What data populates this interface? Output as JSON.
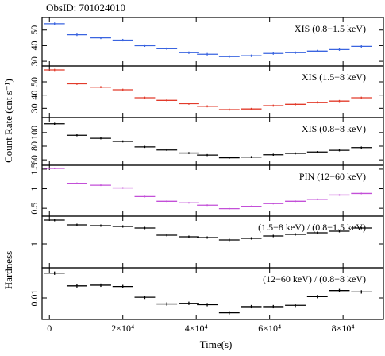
{
  "header": {
    "obsid": "ObsID: 701024010"
  },
  "chart_data": {
    "type": "scatter",
    "x_axis": {
      "label": "Time(s)",
      "range": [
        -2000,
        91000
      ],
      "ticks": [
        {
          "value": 0,
          "label": "0"
        },
        {
          "value": 20000,
          "label": "2×10⁴"
        },
        {
          "value": 40000,
          "label": "4×10⁴"
        },
        {
          "value": 60000,
          "label": "6×10⁴"
        },
        {
          "value": 80000,
          "label": "8×10⁴"
        }
      ]
    },
    "shared_ylabels": {
      "count_rate": "Count Rate (cnt s⁻¹)",
      "hardness": "Hardness"
    },
    "bin_half_width": 2800,
    "panels": [
      {
        "label": "XIS (0.8−1.5 keV)",
        "color": "#3a64e0",
        "ylim": [
          27,
          58
        ],
        "log": false,
        "ticks": [
          {
            "value": 30,
            "label": "30"
          },
          {
            "value": 40,
            "label": "40"
          },
          {
            "value": 50,
            "label": "50"
          }
        ],
        "points": [
          {
            "x": 1400,
            "y": 54.0,
            "yerr": 0.8
          },
          {
            "x": 7500,
            "y": 47.0,
            "yerr": 0.8
          },
          {
            "x": 14000,
            "y": 45.0,
            "yerr": 0.8
          },
          {
            "x": 20000,
            "y": 43.5,
            "yerr": 0.8
          },
          {
            "x": 26000,
            "y": 40.0,
            "yerr": 0.8
          },
          {
            "x": 32000,
            "y": 38.0,
            "yerr": 0.8
          },
          {
            "x": 38000,
            "y": 35.5,
            "yerr": 0.8
          },
          {
            "x": 43000,
            "y": 34.5,
            "yerr": 0.8
          },
          {
            "x": 49000,
            "y": 33.0,
            "yerr": 0.8
          },
          {
            "x": 55000,
            "y": 33.5,
            "yerr": 0.8
          },
          {
            "x": 61000,
            "y": 35.0,
            "yerr": 0.8
          },
          {
            "x": 67000,
            "y": 35.5,
            "yerr": 0.8
          },
          {
            "x": 73000,
            "y": 36.5,
            "yerr": 0.8
          },
          {
            "x": 79000,
            "y": 37.5,
            "yerr": 0.8
          },
          {
            "x": 85000,
            "y": 39.5,
            "yerr": 0.8
          }
        ]
      },
      {
        "label": "XIS (1.5−8 keV)",
        "color": "#e23b2b",
        "ylim": [
          23,
          62
        ],
        "log": false,
        "ticks": [
          {
            "value": 30,
            "label": "30"
          },
          {
            "value": 40,
            "label": "40"
          },
          {
            "value": 50,
            "label": "50"
          }
        ],
        "points": [
          {
            "x": 1400,
            "y": 59.0,
            "yerr": 0.8
          },
          {
            "x": 7500,
            "y": 48.5,
            "yerr": 0.8
          },
          {
            "x": 14000,
            "y": 46.0,
            "yerr": 0.8
          },
          {
            "x": 20000,
            "y": 44.0,
            "yerr": 0.8
          },
          {
            "x": 26000,
            "y": 38.0,
            "yerr": 0.8
          },
          {
            "x": 32000,
            "y": 36.0,
            "yerr": 0.8
          },
          {
            "x": 38000,
            "y": 33.5,
            "yerr": 0.8
          },
          {
            "x": 43000,
            "y": 31.5,
            "yerr": 0.8
          },
          {
            "x": 49000,
            "y": 29.0,
            "yerr": 0.8
          },
          {
            "x": 55000,
            "y": 29.5,
            "yerr": 0.8
          },
          {
            "x": 61000,
            "y": 32.0,
            "yerr": 0.8
          },
          {
            "x": 67000,
            "y": 33.0,
            "yerr": 0.8
          },
          {
            "x": 73000,
            "y": 34.5,
            "yerr": 0.8
          },
          {
            "x": 79000,
            "y": 35.5,
            "yerr": 0.8
          },
          {
            "x": 85000,
            "y": 38.0,
            "yerr": 0.8
          }
        ]
      },
      {
        "label": "XIS (0.8−8 keV)",
        "color": "#000000",
        "ylim": [
          52,
          122
        ],
        "log": false,
        "ticks": [
          {
            "value": 60,
            "label": "60"
          },
          {
            "value": 80,
            "label": "80"
          },
          {
            "value": 100,
            "label": "100"
          }
        ],
        "points": [
          {
            "x": 1400,
            "y": 113.0,
            "yerr": 1.5
          },
          {
            "x": 7500,
            "y": 96.0,
            "yerr": 1.5
          },
          {
            "x": 14000,
            "y": 91.5,
            "yerr": 1.5
          },
          {
            "x": 20000,
            "y": 87.0,
            "yerr": 1.5
          },
          {
            "x": 26000,
            "y": 79.0,
            "yerr": 1.5
          },
          {
            "x": 32000,
            "y": 74.5,
            "yerr": 1.5
          },
          {
            "x": 38000,
            "y": 70.0,
            "yerr": 1.5
          },
          {
            "x": 43000,
            "y": 67.0,
            "yerr": 1.5
          },
          {
            "x": 49000,
            "y": 63.0,
            "yerr": 1.5
          },
          {
            "x": 55000,
            "y": 64.0,
            "yerr": 1.5
          },
          {
            "x": 61000,
            "y": 67.5,
            "yerr": 1.5
          },
          {
            "x": 67000,
            "y": 69.5,
            "yerr": 1.5
          },
          {
            "x": 73000,
            "y": 71.5,
            "yerr": 1.5
          },
          {
            "x": 79000,
            "y": 74.0,
            "yerr": 1.5
          },
          {
            "x": 85000,
            "y": 78.0,
            "yerr": 1.5
          }
        ]
      },
      {
        "label": "PIN (12−60 keV)",
        "color": "#c34fd8",
        "ylim": [
          0.3,
          1.6
        ],
        "log": false,
        "ticks": [
          {
            "value": 0.5,
            "label": "0.5"
          },
          {
            "value": 1,
            "label": "1"
          },
          {
            "value": 1.5,
            "label": "1.5"
          }
        ],
        "points": [
          {
            "x": 1400,
            "y": 1.52,
            "yerr": 0.02
          },
          {
            "x": 7500,
            "y": 1.14,
            "yerr": 0.02
          },
          {
            "x": 14000,
            "y": 1.09,
            "yerr": 0.02
          },
          {
            "x": 20000,
            "y": 1.02,
            "yerr": 0.02
          },
          {
            "x": 26000,
            "y": 0.8,
            "yerr": 0.02
          },
          {
            "x": 32000,
            "y": 0.68,
            "yerr": 0.02
          },
          {
            "x": 38000,
            "y": 0.64,
            "yerr": 0.02
          },
          {
            "x": 43000,
            "y": 0.58,
            "yerr": 0.02
          },
          {
            "x": 49000,
            "y": 0.49,
            "yerr": 0.02
          },
          {
            "x": 55000,
            "y": 0.55,
            "yerr": 0.02
          },
          {
            "x": 61000,
            "y": 0.62,
            "yerr": 0.02
          },
          {
            "x": 67000,
            "y": 0.68,
            "yerr": 0.02
          },
          {
            "x": 73000,
            "y": 0.73,
            "yerr": 0.02
          },
          {
            "x": 79000,
            "y": 0.84,
            "yerr": 0.02
          },
          {
            "x": 85000,
            "y": 0.88,
            "yerr": 0.02
          }
        ]
      },
      {
        "label": "(1.5−8 keV) / (0.8−1.5 keV)",
        "color": "#000000",
        "ylim": [
          0.7,
          1.35
        ],
        "log": false,
        "ticks": [
          {
            "value": 1,
            "label": "1"
          }
        ],
        "points": [
          {
            "x": 1400,
            "y": 1.3,
            "yerr": 0.015
          },
          {
            "x": 7500,
            "y": 1.24,
            "yerr": 0.015
          },
          {
            "x": 14000,
            "y": 1.23,
            "yerr": 0.015
          },
          {
            "x": 20000,
            "y": 1.22,
            "yerr": 0.015
          },
          {
            "x": 26000,
            "y": 1.2,
            "yerr": 0.015
          },
          {
            "x": 32000,
            "y": 1.11,
            "yerr": 0.015
          },
          {
            "x": 38000,
            "y": 1.09,
            "yerr": 0.015
          },
          {
            "x": 43000,
            "y": 1.08,
            "yerr": 0.015
          },
          {
            "x": 49000,
            "y": 1.05,
            "yerr": 0.015
          },
          {
            "x": 55000,
            "y": 1.07,
            "yerr": 0.015
          },
          {
            "x": 61000,
            "y": 1.1,
            "yerr": 0.015
          },
          {
            "x": 67000,
            "y": 1.12,
            "yerr": 0.015
          },
          {
            "x": 73000,
            "y": 1.14,
            "yerr": 0.015
          },
          {
            "x": 79000,
            "y": 1.16,
            "yerr": 0.015
          },
          {
            "x": 85000,
            "y": 1.2,
            "yerr": 0.015
          }
        ]
      },
      {
        "label": "(12−60 keV) / (0.8−8 keV)",
        "color": "#000000",
        "ylim": [
          0.0068,
          0.0145
        ],
        "log": false,
        "ticks": [
          {
            "value": 0.01,
            "label": "0.01"
          }
        ],
        "points": [
          {
            "x": 1400,
            "y": 0.0137,
            "yerr": 0.00025
          },
          {
            "x": 7500,
            "y": 0.0118,
            "yerr": 0.00025
          },
          {
            "x": 14000,
            "y": 0.0119,
            "yerr": 0.00025
          },
          {
            "x": 20000,
            "y": 0.0117,
            "yerr": 0.00025
          },
          {
            "x": 26000,
            "y": 0.0101,
            "yerr": 0.00025
          },
          {
            "x": 32000,
            "y": 0.0091,
            "yerr": 0.00025
          },
          {
            "x": 38000,
            "y": 0.0092,
            "yerr": 0.00025
          },
          {
            "x": 43000,
            "y": 0.009,
            "yerr": 0.00025
          },
          {
            "x": 49000,
            "y": 0.0078,
            "yerr": 0.00025
          },
          {
            "x": 55000,
            "y": 0.0087,
            "yerr": 0.00025
          },
          {
            "x": 61000,
            "y": 0.0087,
            "yerr": 0.00025
          },
          {
            "x": 67000,
            "y": 0.0089,
            "yerr": 0.00025
          },
          {
            "x": 73000,
            "y": 0.0102,
            "yerr": 0.00025
          },
          {
            "x": 79000,
            "y": 0.0111,
            "yerr": 0.00025
          },
          {
            "x": 85000,
            "y": 0.0109,
            "yerr": 0.00025
          }
        ]
      }
    ]
  }
}
